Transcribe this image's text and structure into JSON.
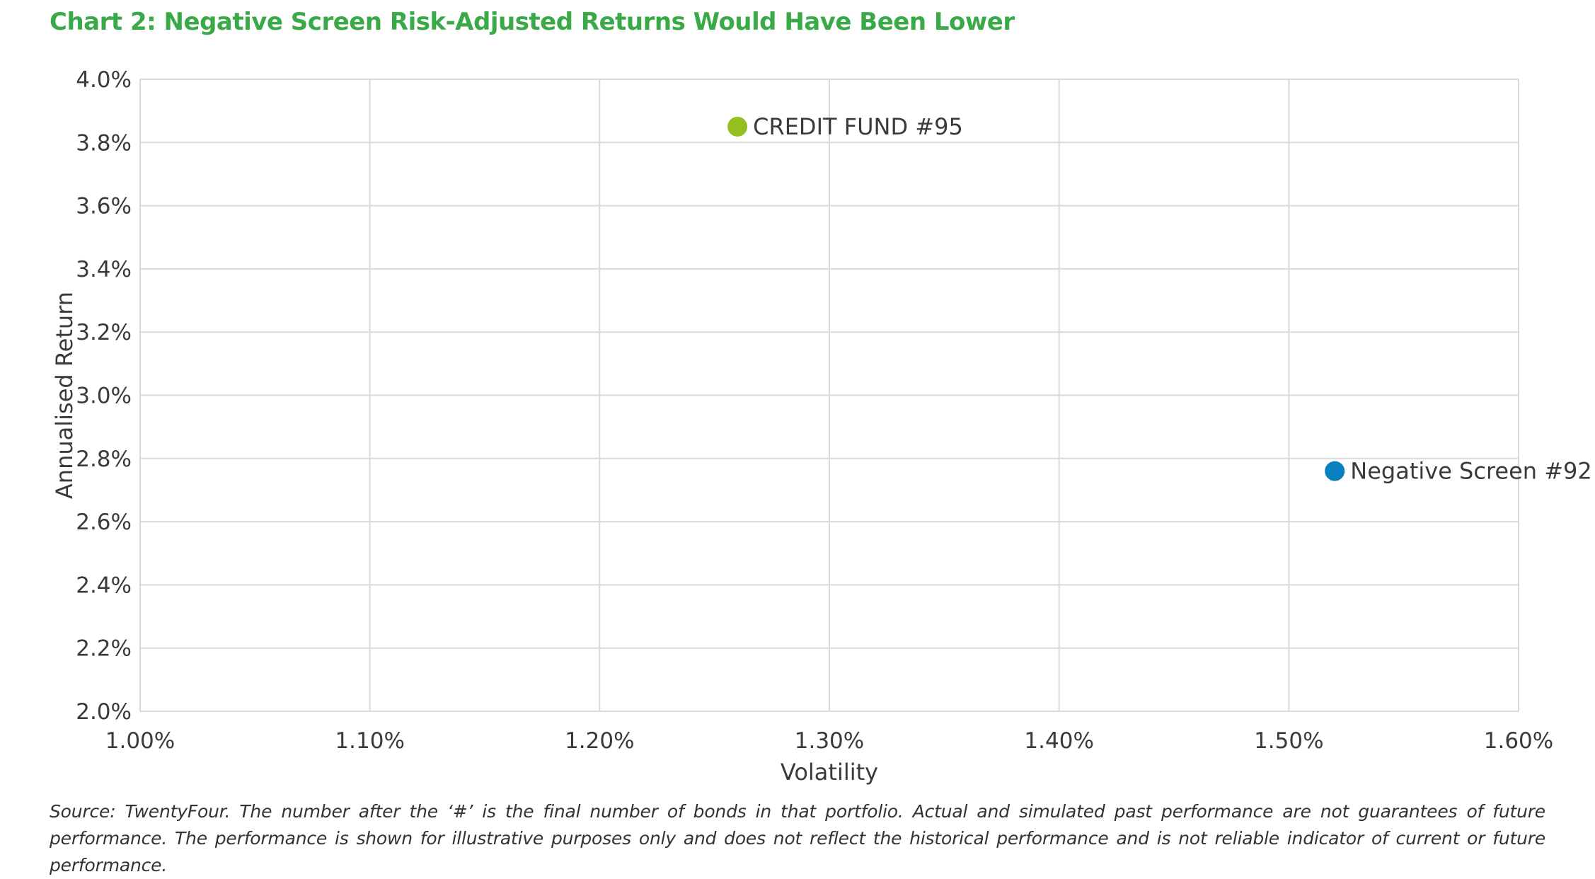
{
  "chart_data": {
    "type": "scatter",
    "title": "Chart 2: Negative Screen Risk-Adjusted Returns Would Have Been Lower",
    "xlabel": "Volatility",
    "ylabel": "Annualised Return",
    "xlim": [
      1.0,
      1.6
    ],
    "ylim": [
      2.0,
      4.0
    ],
    "x_ticks": [
      1.0,
      1.1,
      1.2,
      1.3,
      1.4,
      1.5,
      1.6
    ],
    "x_tick_labels": [
      "1.00%",
      "1.10%",
      "1.20%",
      "1.30%",
      "1.40%",
      "1.50%",
      "1.60%"
    ],
    "y_ticks": [
      2.0,
      2.2,
      2.4,
      2.6,
      2.8,
      3.0,
      3.2,
      3.4,
      3.6,
      3.8,
      4.0
    ],
    "y_tick_labels": [
      "2.0%",
      "2.2%",
      "2.4%",
      "2.6%",
      "2.8%",
      "3.0%",
      "3.2%",
      "3.4%",
      "3.6%",
      "3.8%",
      "4.0%"
    ],
    "grid": true,
    "points": [
      {
        "label": "CREDIT FUND #95",
        "x": 1.26,
        "y": 3.85,
        "color": "#93c01f"
      },
      {
        "label": "Negative Screen #92",
        "x": 1.52,
        "y": 2.76,
        "color": "#0a7fbf"
      }
    ]
  },
  "source_note": "Source: TwentyFour. The number after the ‘#’ is the final number of bonds in that portfolio. Actual and simulated past performance are not guarantees of future performance. The performance is shown for illustrative purposes only and does not reflect the historical performance and is not reliable indicator of current or future performance.",
  "colors": {
    "title": "#3aaa48",
    "grid": "#d9d9d9",
    "text": "#3a3a3a"
  }
}
